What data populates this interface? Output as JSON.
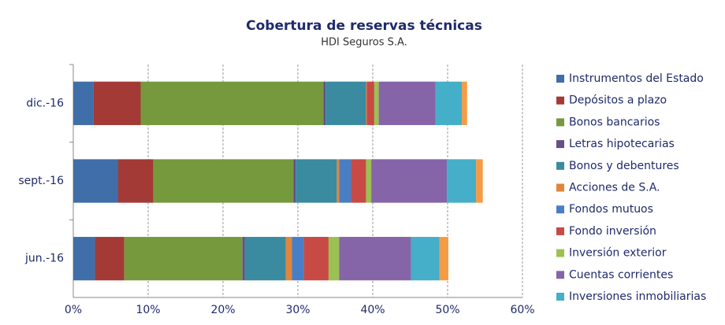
{
  "chart_data": {
    "type": "stacked_barh",
    "title": "Cobertura de reservas técnicas",
    "subtitle": "HDI Seguros S.A.",
    "categories": [
      "dic.-16",
      "sept.-16",
      "jun.-16"
    ],
    "series": [
      {
        "name": "Instrumentos del Estado",
        "color": "#3f6ea8",
        "values": [
          2.7,
          6.0,
          2.9
        ]
      },
      {
        "name": "Depósitos a plazo",
        "color": "#a33a36",
        "values": [
          6.3,
          4.7,
          3.9
        ]
      },
      {
        "name": "Bonos bancarios",
        "color": "#76993d",
        "values": [
          24.4,
          18.7,
          15.8
        ]
      },
      {
        "name": "Letras hipotecarias",
        "color": "#654e8a",
        "values": [
          0.3,
          0.3,
          0.3
        ]
      },
      {
        "name": "Bonos y debentures",
        "color": "#3a8aa0",
        "values": [
          5.4,
          5.5,
          5.5
        ]
      },
      {
        "name": "Acciones de S.A.",
        "color": "#e0853a",
        "values": [
          0.1,
          0.3,
          0.8
        ]
      },
      {
        "name": "Fondos mutuos",
        "color": "#4a7ec4",
        "values": [
          0,
          1.6,
          1.6
        ]
      },
      {
        "name": "Fondo inversión",
        "color": "#c74a45",
        "values": [
          1.0,
          2.0,
          3.3
        ]
      },
      {
        "name": "Inversión exterior",
        "color": "#9bc152",
        "values": [
          0.6,
          0.7,
          1.4
        ]
      },
      {
        "name": "Cuentas corrientes",
        "color": "#8565a8",
        "values": [
          7.6,
          10.1,
          9.6
        ]
      },
      {
        "name": "Inversiones inmobiliarias",
        "color": "#45aec8",
        "values": [
          3.5,
          3.9,
          3.8
        ]
      },
      {
        "color": "#f39c45",
        "values": [
          0.7,
          0.9,
          1.2
        ]
      }
    ],
    "xlim": [
      0,
      60
    ],
    "xticks": [
      {
        "value": 0,
        "label": "0%"
      },
      {
        "value": 10,
        "label": "10%"
      },
      {
        "value": 20,
        "label": "20%"
      },
      {
        "value": 30,
        "label": "30%"
      },
      {
        "value": 40,
        "label": "40%"
      },
      {
        "value": 50,
        "label": "50%"
      },
      {
        "value": 60,
        "label": "60%"
      }
    ],
    "grid": true,
    "legend": "right"
  }
}
